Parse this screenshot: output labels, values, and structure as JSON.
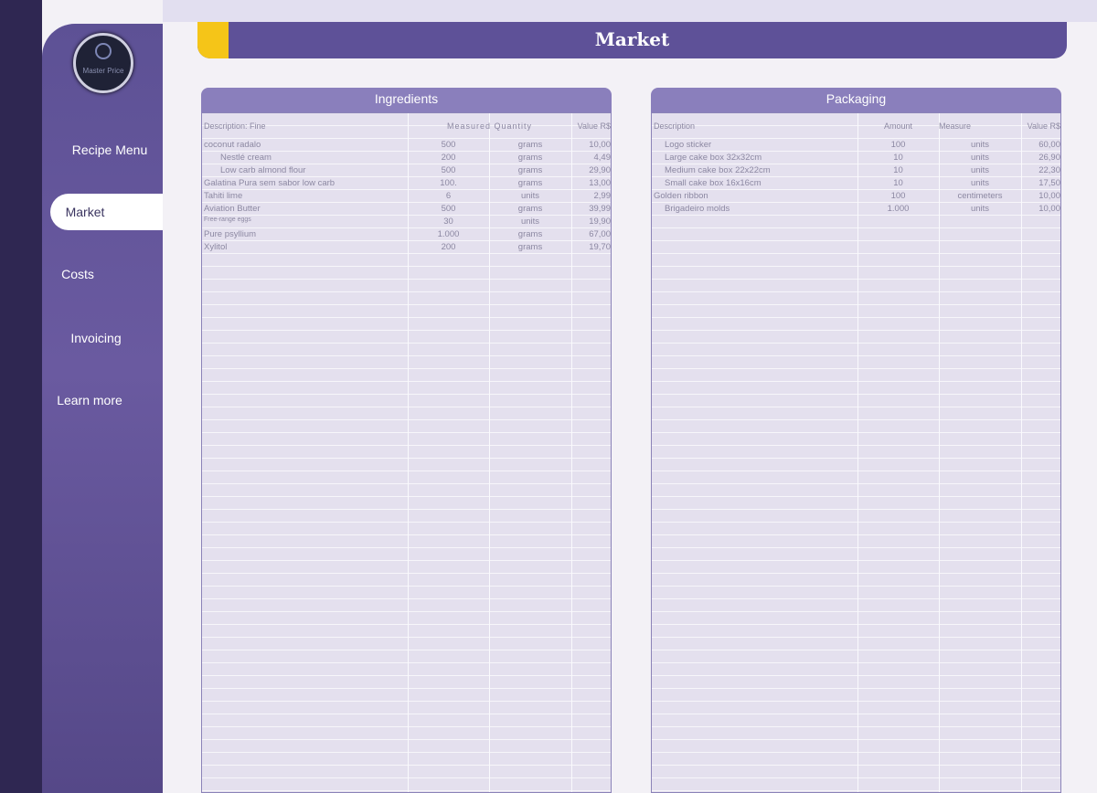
{
  "logo": {
    "text": "Master Price"
  },
  "nav": [
    "Recipe Menu",
    "Market",
    "Costs",
    "Invoicing",
    "Learn more"
  ],
  "header": {
    "title": "Market"
  },
  "ingredients": {
    "title": "Ingredients",
    "columns": [
      "Description: Fine",
      "Measured Quantity",
      "Value R$"
    ],
    "rows": [
      [
        "coconut radalo",
        "500",
        "grams",
        "10,00"
      ],
      [
        "Nestlé cream",
        "200",
        "grams",
        "4,49"
      ],
      [
        "Low carb almond flour",
        "500",
        "grams",
        "29,90"
      ],
      [
        "Galatina Pura sem sabor low carb",
        "100.",
        "grams",
        "13,00"
      ],
      [
        "Tahiti lime",
        "6",
        "units",
        "2,99"
      ],
      [
        "Aviation Butter",
        "500",
        "grams",
        "39,99"
      ],
      [
        "Free-range eggs",
        "30",
        "units",
        "19,90"
      ],
      [
        "Pure psyllium",
        "1.000",
        "grams",
        "67,00"
      ],
      [
        "Xylitol",
        "200",
        "grams",
        "19,70"
      ]
    ]
  },
  "packaging": {
    "title": "Packaging",
    "columns": [
      "Description",
      "Amount",
      "Measure",
      "Value R$"
    ],
    "rows": [
      [
        "Logo sticker",
        "100",
        "units",
        "60,00"
      ],
      [
        "Large cake box 32x32cm",
        "10",
        "units",
        "26,90"
      ],
      [
        "Medium cake box 22x22cm",
        "10",
        "units",
        "22,30"
      ],
      [
        "Small cake box 16x16cm",
        "10",
        "units",
        "17,50"
      ],
      [
        "Golden ribbon",
        "100",
        "centimeters",
        "10,00"
      ],
      [
        "Brigadeiro molds",
        "1.000",
        "units",
        "10,00"
      ]
    ]
  }
}
